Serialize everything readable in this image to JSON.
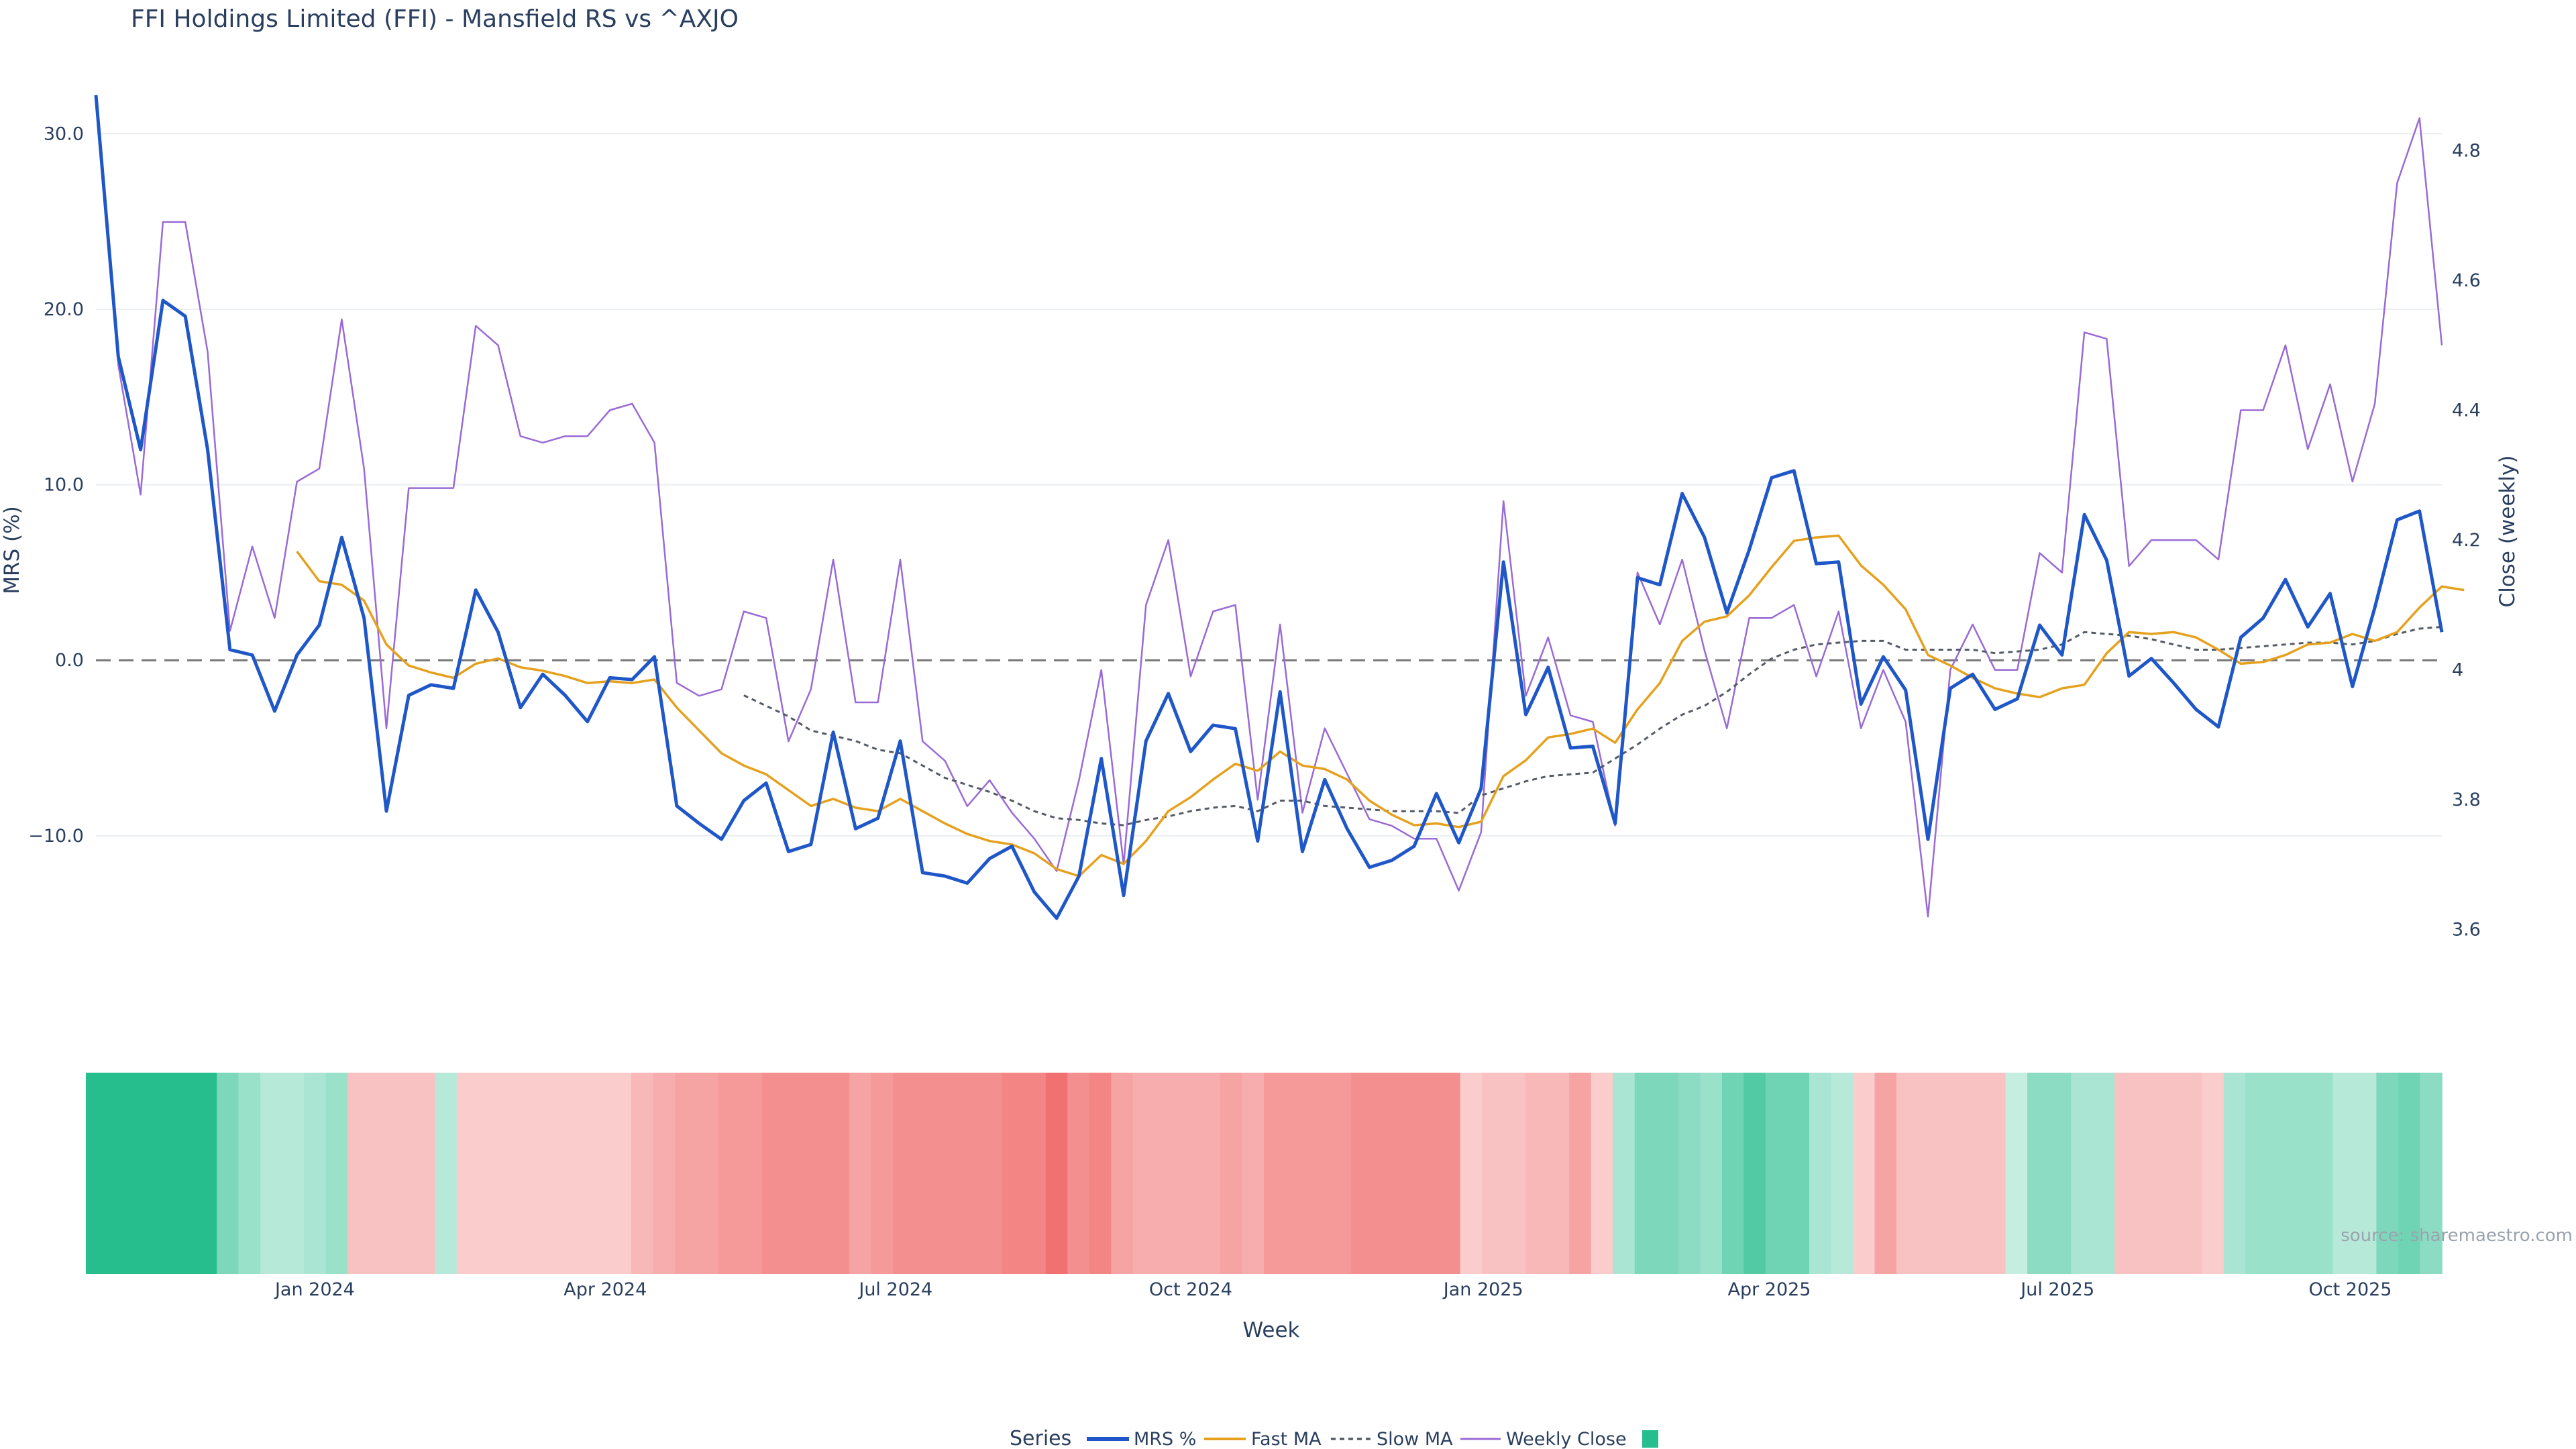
{
  "title": "FFI Holdings Limited (FFI) - Mansfield RS vs ^AXJO",
  "source": "source: sharemaestro.com",
  "colors": {
    "mrs": "#1f57c8",
    "fast": "#e5a11e",
    "slow": "#555b66",
    "close": "#9a6ad6",
    "pos": "#27be8e",
    "neg": "#f06666",
    "zero": "#777777",
    "grid": "#ebeef2"
  },
  "legend": {
    "title": "Series",
    "items": [
      "MRS %",
      "Fast MA",
      "Slow MA",
      "Weekly Close",
      ""
    ]
  },
  "chart_data": {
    "type": "line",
    "title": "FFI Holdings Limited (FFI) - Mansfield RS vs ^AXJO",
    "xlabel": "Week",
    "ylabel": "MRS (%)",
    "y2label": "Close (weekly)",
    "ylim": [
      -19.6,
      32
    ],
    "y2lim": [
      3.485,
      4.88
    ],
    "yticks": [
      -10,
      0,
      10,
      20,
      30
    ],
    "yticklabels": [
      "−10.0",
      "0.0",
      "10.0",
      "20.0",
      "30.0"
    ],
    "y2ticks": [
      3.6,
      3.8,
      4.0,
      4.2,
      4.4,
      4.6,
      4.8
    ],
    "y2ticklabels": [
      "3.6",
      "3.8",
      "4",
      "4.2",
      "4.4",
      "4.6",
      "4.8"
    ],
    "x_week_span": [
      0,
      105
    ],
    "xticks": [
      {
        "week": 9.8,
        "label": "Jan 2024"
      },
      {
        "week": 22.8,
        "label": "Apr 2024"
      },
      {
        "week": 35.8,
        "label": "Jul 2024"
      },
      {
        "week": 49,
        "label": "Oct 2024"
      },
      {
        "week": 62.1,
        "label": "Jan 2025"
      },
      {
        "week": 74.9,
        "label": "Apr 2025"
      },
      {
        "week": 87.8,
        "label": "Jul 2025"
      },
      {
        "week": 100.9,
        "label": "Oct 2025"
      }
    ],
    "zero_line": 0,
    "series": [
      {
        "name": "MRS %",
        "start_week": 0,
        "values": [
          32.2,
          17.3,
          12,
          20.5,
          19.6,
          12,
          0.6,
          0.3,
          -2.9,
          0.3,
          2,
          7,
          2.4,
          -8.6,
          -2,
          -1.4,
          -1.6,
          4,
          1.6,
          -2.7,
          -0.8,
          -2,
          -3.5,
          -1,
          -1.1,
          0.2,
          -8.3,
          -9.3,
          -10.2,
          -8,
          -7,
          -10.9,
          -10.5,
          -4.1,
          -9.6,
          -9,
          -4.6,
          -12.1,
          -12.3,
          -12.7,
          -11.3,
          -10.6,
          -13.2,
          -14.7,
          -12.3,
          -5.6,
          -13.4,
          -4.6,
          -1.9,
          -5.2,
          -3.7,
          -3.9,
          -10.3,
          -1.8,
          -10.9,
          -6.8,
          -9.6,
          -11.8,
          -11.4,
          -10.6,
          -7.6,
          -10.4,
          -7.3,
          5.6,
          -3.1,
          -0.4,
          -5,
          -4.9,
          -9.3,
          4.7,
          4.3,
          9.5,
          7,
          2.7,
          6.3,
          10.4,
          10.8,
          5.5,
          5.6,
          -2.5,
          0.2,
          -1.7,
          -10.2,
          -1.6,
          -0.8,
          -2.8,
          -2.2,
          2,
          0.3,
          8.3,
          5.7,
          -0.9,
          0.1,
          -1.3,
          -2.8,
          -3.8,
          1.3,
          2.4,
          4.6,
          1.9,
          3.8,
          -1.5,
          3,
          8,
          8.5,
          1.6
        ]
      },
      {
        "name": "Fast MA",
        "start_week": 9,
        "values": [
          6.2,
          4.5,
          4.3,
          3.4,
          0.9,
          -0.3,
          -0.7,
          -1,
          -0.2,
          0.1,
          -0.4,
          -0.6,
          -0.9,
          -1.3,
          -1.2,
          -1.3,
          -1.1,
          -2.7,
          -4,
          -5.3,
          -6,
          -6.5,
          -7.4,
          -8.3,
          -7.9,
          -8.4,
          -8.6,
          -7.9,
          -8.6,
          -9.3,
          -9.9,
          -10.3,
          -10.5,
          -11,
          -11.9,
          -12.3,
          -11.1,
          -11.6,
          -10.3,
          -8.6,
          -7.8,
          -6.8,
          -5.9,
          -6.3,
          -5.2,
          -6,
          -6.2,
          -6.8,
          -8,
          -8.8,
          -9.4,
          -9.3,
          -9.5,
          -9.2,
          -6.6,
          -5.7,
          -4.4,
          -4.2,
          -3.9,
          -4.7,
          -2.8,
          -1.3,
          1.1,
          2.2,
          2.5,
          3.7,
          5.3,
          6.8,
          7,
          7.1,
          5.4,
          4.3,
          2.9,
          0.3,
          -0.3,
          -1,
          -1.6,
          -1.9,
          -2.1,
          -1.6,
          -1.4,
          0.4,
          1.6,
          1.5,
          1.6,
          1.3,
          0.6,
          -0.2,
          -0.1,
          0.3,
          0.9,
          1,
          1.5,
          1.1,
          1.6,
          3,
          4.2,
          4
        ]
      },
      {
        "name": "Slow MA",
        "start_week": 29,
        "values": [
          -2,
          -2.6,
          -3.2,
          -4,
          -4.3,
          -4.6,
          -5.1,
          -5.3,
          -6,
          -6.7,
          -7.1,
          -7.5,
          -8,
          -8.6,
          -9,
          -9.1,
          -9.3,
          -9.4,
          -9.1,
          -8.9,
          -8.6,
          -8.4,
          -8.3,
          -8.6,
          -8,
          -8,
          -8.3,
          -8.4,
          -8.5,
          -8.6,
          -8.6,
          -8.6,
          -8.7,
          -7.7,
          -7.3,
          -6.9,
          -6.6,
          -6.5,
          -6.4,
          -5.6,
          -4.8,
          -3.9,
          -3.1,
          -2.6,
          -1.8,
          -0.8,
          0.1,
          0.6,
          0.9,
          1,
          1.1,
          1.1,
          0.6,
          0.6,
          0.6,
          0.6,
          0.4,
          0.5,
          0.6,
          0.9,
          1.6,
          1.5,
          1.4,
          1.2,
          0.9,
          0.6,
          0.6,
          0.7,
          0.8,
          0.9,
          1,
          1,
          0.9,
          1.1,
          1.5,
          1.8,
          1.9
        ]
      },
      {
        "name": "Weekly Close",
        "start_week": 0,
        "values": [
          4.88,
          4.47,
          4.27,
          4.69,
          4.69,
          4.49,
          4.06,
          4.19,
          4.08,
          4.29,
          4.31,
          4.54,
          4.31,
          3.91,
          4.28,
          4.28,
          4.28,
          4.53,
          4.5,
          4.36,
          4.35,
          4.36,
          4.36,
          4.4,
          4.41,
          4.35,
          3.98,
          3.96,
          3.97,
          4.09,
          4.08,
          3.89,
          3.97,
          4.17,
          3.95,
          3.95,
          4.17,
          3.89,
          3.86,
          3.79,
          3.83,
          3.78,
          3.74,
          3.69,
          3.83,
          4,
          3.7,
          4.1,
          4.2,
          3.99,
          4.09,
          4.1,
          3.8,
          4.07,
          3.78,
          3.91,
          3.84,
          3.77,
          3.76,
          3.74,
          3.74,
          3.66,
          3.75,
          4.26,
          3.96,
          4.05,
          3.93,
          3.92,
          3.76,
          4.15,
          4.07,
          4.17,
          4.03,
          3.91,
          4.08,
          4.08,
          4.1,
          3.99,
          4.09,
          3.91,
          4,
          3.92,
          3.62,
          4,
          4.07,
          4,
          4,
          4.18,
          4.15,
          4.52,
          4.51,
          4.16,
          4.2,
          4.2,
          4.2,
          4.17,
          4.4,
          4.4,
          4.5,
          4.34,
          4.44,
          4.29,
          4.41,
          4.75,
          4.85,
          4.5
        ]
      }
    ],
    "regime_strip": {
      "description": "weekly MRS color strip, green positive, red negative",
      "values": [
        18,
        18,
        18,
        18,
        18,
        18,
        6,
        4,
        2,
        2,
        3,
        4,
        -3,
        -3,
        -3,
        -3,
        2,
        -2,
        -2,
        -2,
        -2,
        -2,
        -2,
        -2,
        -2,
        -4,
        -5,
        -6,
        -6,
        -7,
        -7,
        -8,
        -8,
        -8,
        -8,
        -6,
        -7,
        -8,
        -8,
        -8,
        -8,
        -8,
        -9,
        -9,
        -11,
        -8,
        -9,
        -6,
        -5,
        -5,
        -5,
        -5,
        -6,
        -5,
        -7,
        -7,
        -7,
        -7,
        -8,
        -8,
        -8,
        -8,
        -8,
        -2,
        -3,
        -3,
        -4,
        -4,
        -6,
        -2,
        3,
        6,
        6,
        5,
        4,
        7,
        9,
        7,
        7,
        3,
        2,
        -2,
        -6,
        -3,
        -3,
        -3,
        -3,
        -3,
        1,
        5,
        5,
        3,
        3,
        -3,
        -3,
        -3,
        -3,
        -2,
        3,
        4,
        4,
        4,
        4,
        2,
        2,
        6,
        7,
        5
      ]
    }
  }
}
